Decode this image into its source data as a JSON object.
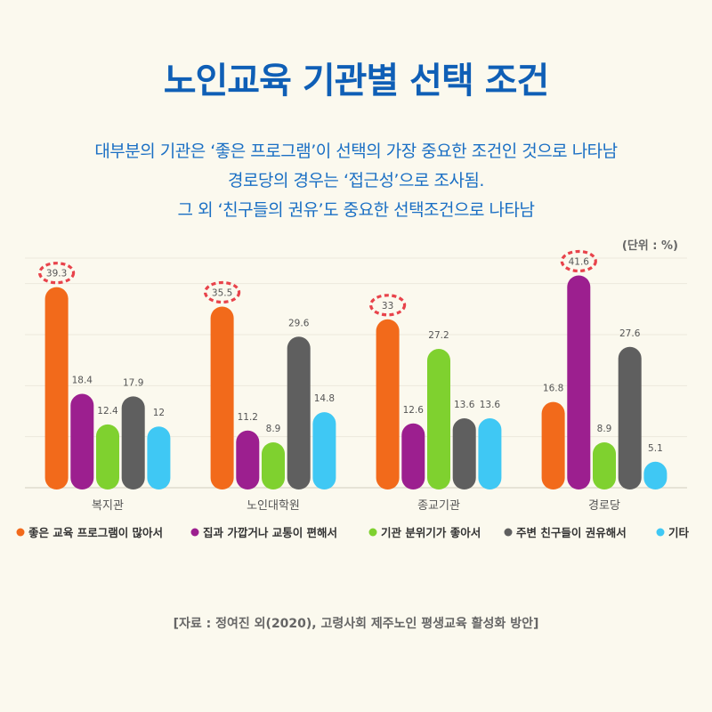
{
  "title": "노인교육 기관별 선택 조건",
  "subtitle": [
    "대부분의 기관은 ‘좋은 프로그램’이 선택의 가장 중요한 조건인 것으로 나타남",
    "경로당의 경우는 ‘접근성’으로 조사됨.",
    "그 외 ‘친구들의 권유’도 중요한 선택조건으로 나타남"
  ],
  "unit": "(단위 : %)",
  "source": "[자료 : 정여진 외(2020), 고령사회 제주노인 평생교육 활성화 방안]",
  "chart_data": {
    "type": "bar",
    "categories": [
      "복지관",
      "노인대학원",
      "종교기관",
      "경로당"
    ],
    "series": [
      {
        "name": "좋은 교육 프로그램이 많아서",
        "color": "#f26a1b",
        "values": [
          39.3,
          35.5,
          33,
          16.8
        ]
      },
      {
        "name": "집과 가깝거나 교통이 편해서",
        "color": "#9c1f8f",
        "values": [
          18.4,
          11.2,
          12.6,
          41.6
        ]
      },
      {
        "name": "기관 분위기가 좋아서",
        "color": "#7fd12f",
        "values": [
          12.4,
          8.9,
          27.2,
          8.9
        ]
      },
      {
        "name": "주변 친구들이 권유해서",
        "color": "#5f5f5f",
        "values": [
          17.9,
          29.6,
          13.6,
          27.6
        ]
      },
      {
        "name": "기타",
        "color": "#3fc8f4",
        "values": [
          12,
          14.8,
          13.6,
          5.1
        ]
      }
    ],
    "highlighted": [
      {
        "category": "복지관",
        "series": "좋은 교육 프로그램이 많아서"
      },
      {
        "category": "노인대학원",
        "series": "좋은 교육 프로그램이 많아서"
      },
      {
        "category": "종교기관",
        "series": "좋은 교육 프로그램이 많아서"
      },
      {
        "category": "경로당",
        "series": "집과 가깝거나 교통이 편해서"
      }
    ],
    "highlight_color": "#e8434b",
    "ylim": [
      0,
      45
    ],
    "grid": true,
    "legend": "bottom"
  }
}
